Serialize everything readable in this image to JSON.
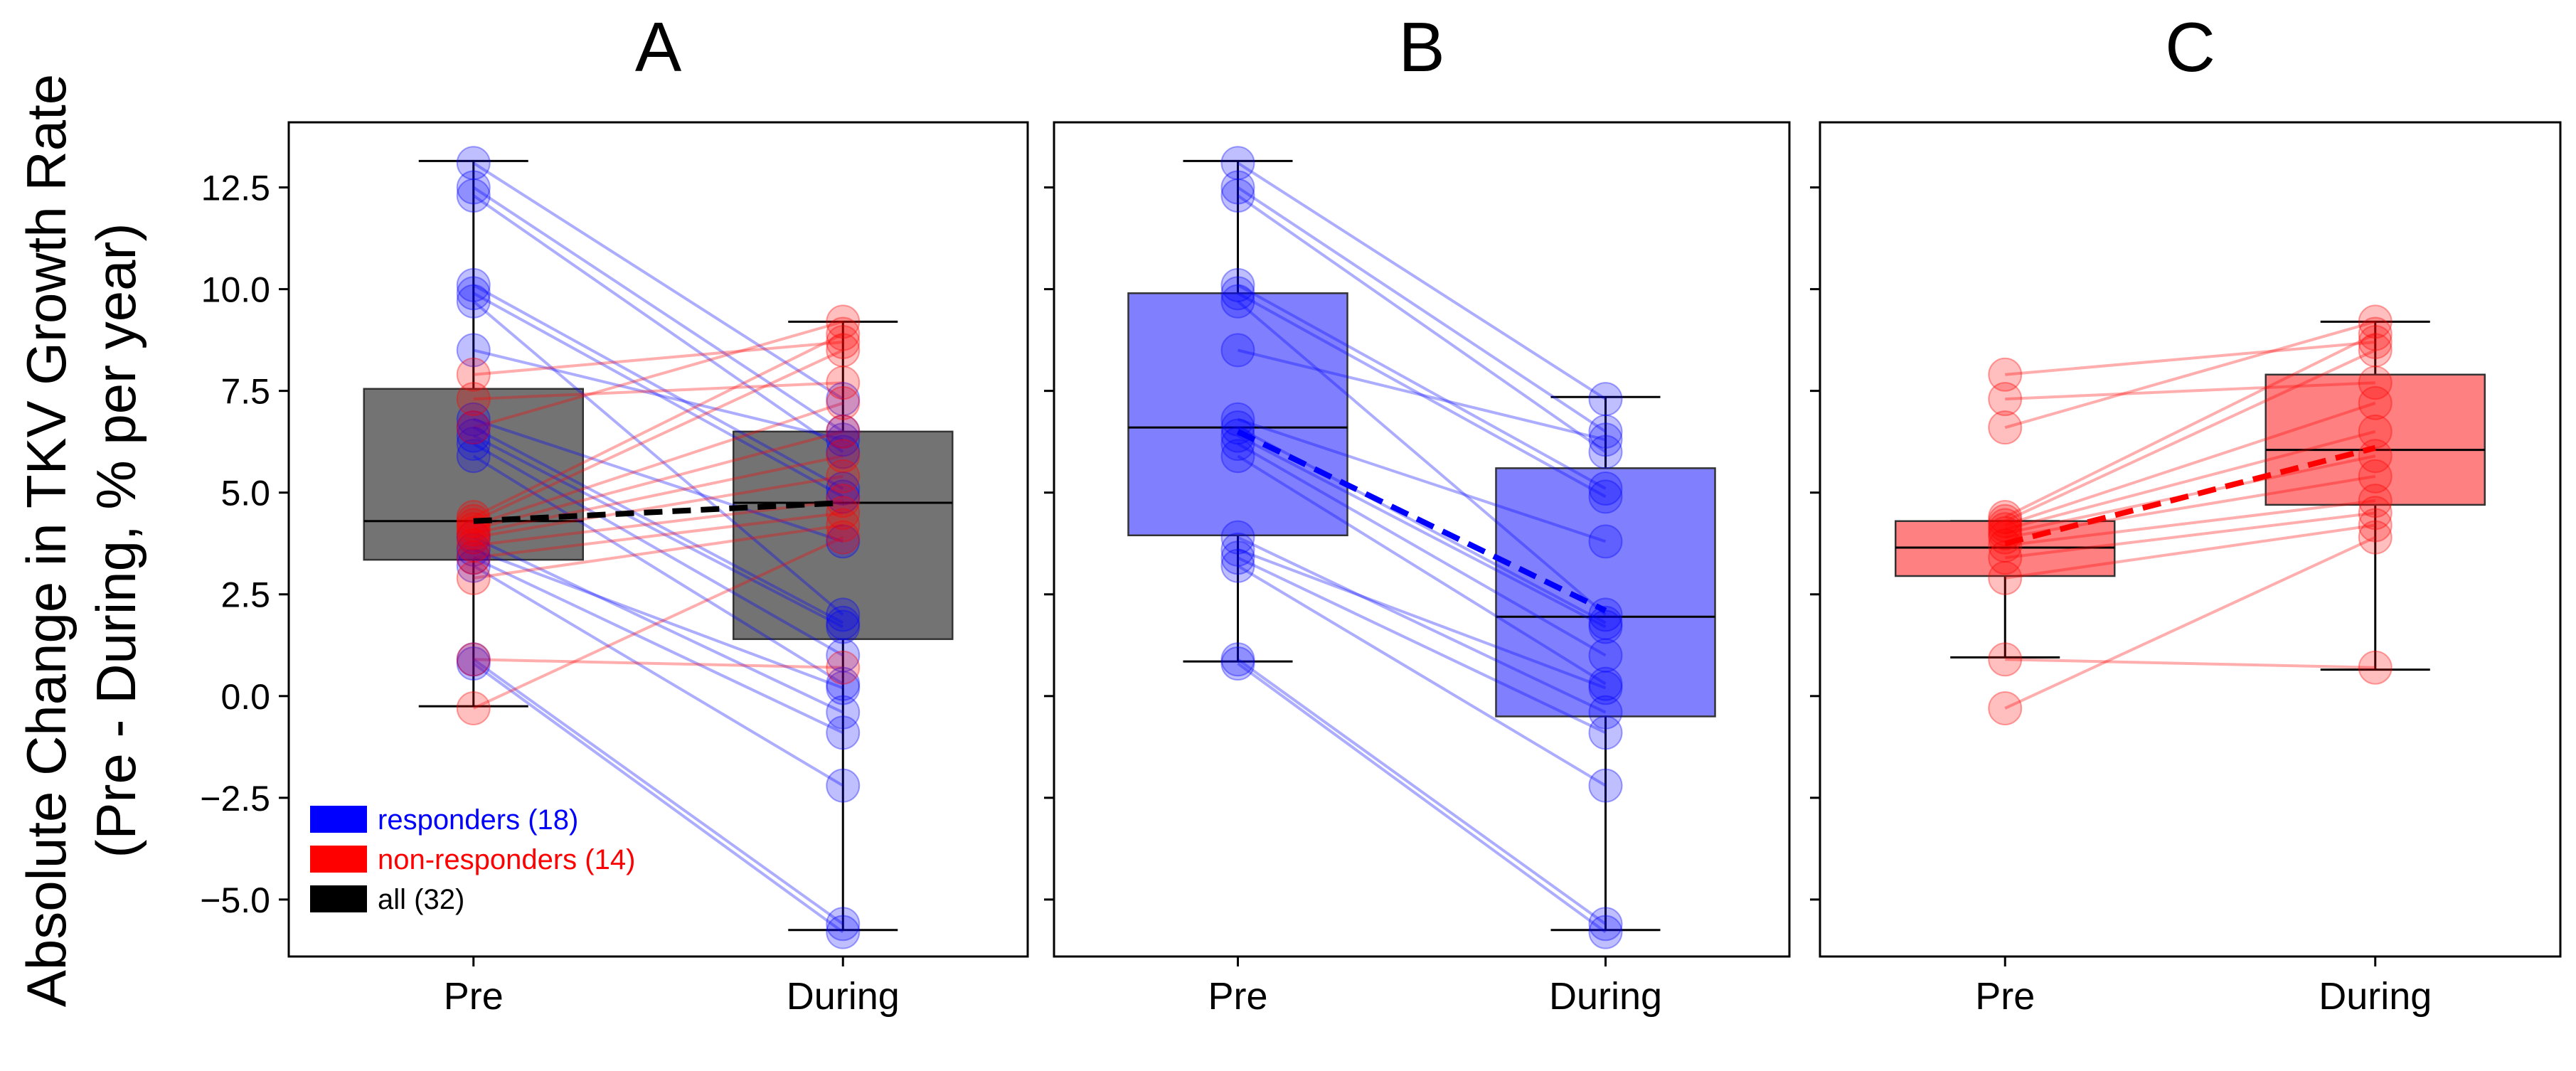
{
  "figure": {
    "ylabel_line1": "Absolute Change in TKV Growth Rate",
    "ylabel_line2": "(Pre - During, % per year)",
    "colors": {
      "responders": "#0000ff",
      "non_responders": "#ff0000",
      "all": "#000000",
      "box_all": "#737373",
      "box_responders": "#8080ff",
      "box_non_responders": "#ff8080"
    }
  },
  "legend": {
    "items": [
      {
        "label": "responders (18)",
        "color": "#0000ff"
      },
      {
        "label": "non-responders (14)",
        "color": "#ff0000"
      },
      {
        "label": "all (32)",
        "color": "#000000"
      }
    ]
  },
  "chart_data": [
    {
      "type": "box",
      "panel": "A",
      "title": "A",
      "categories": [
        "Pre",
        "During"
      ],
      "ylim": [
        -6.4,
        14.1
      ],
      "yticks": [
        -5.0,
        -2.5,
        0.0,
        2.5,
        5.0,
        7.5,
        10.0,
        12.5
      ],
      "ytick_labels": [
        "−5.0",
        "−2.5",
        "0.0",
        "2.5",
        "5.0",
        "7.5",
        "10.0",
        "12.5"
      ],
      "box_color": "#737373",
      "mean_line_color": "#000000",
      "means": [
        4.3,
        4.75
      ],
      "boxes": [
        {
          "q1": 3.35,
          "median": 4.3,
          "q3": 7.55,
          "whisker_low": -0.25,
          "whisker_high": 13.15
        },
        {
          "q1": 1.4,
          "median": 4.75,
          "q3": 6.5,
          "whisker_low": -5.75,
          "whisker_high": 9.2
        }
      ],
      "pairs": [
        {
          "group": "responders",
          "pre": 13.1,
          "during": 7.3
        },
        {
          "group": "responders",
          "pre": 12.5,
          "during": 6.5
        },
        {
          "group": "responders",
          "pre": 12.3,
          "during": 6.0
        },
        {
          "group": "responders",
          "pre": 10.1,
          "during": 5.1
        },
        {
          "group": "responders",
          "pre": 9.9,
          "during": 4.9
        },
        {
          "group": "responders",
          "pre": 9.7,
          "during": 2.0
        },
        {
          "group": "responders",
          "pre": 8.5,
          "during": 6.3
        },
        {
          "group": "responders",
          "pre": 6.8,
          "during": 3.8
        },
        {
          "group": "responders",
          "pre": 6.6,
          "during": 1.8
        },
        {
          "group": "responders",
          "pre": 6.4,
          "during": 1.7
        },
        {
          "group": "responders",
          "pre": 6.2,
          "during": 1.0
        },
        {
          "group": "responders",
          "pre": 5.9,
          "during": 0.3
        },
        {
          "group": "responders",
          "pre": 3.9,
          "during": -0.4
        },
        {
          "group": "responders",
          "pre": 3.6,
          "during": 0.2
        },
        {
          "group": "responders",
          "pre": 3.4,
          "during": -0.9
        },
        {
          "group": "responders",
          "pre": 3.2,
          "during": -2.2
        },
        {
          "group": "responders",
          "pre": 0.9,
          "during": -5.6
        },
        {
          "group": "responders",
          "pre": 0.8,
          "during": -5.8
        },
        {
          "group": "non_responders",
          "pre": 7.9,
          "during": 8.7
        },
        {
          "group": "non_responders",
          "pre": 7.3,
          "during": 7.7
        },
        {
          "group": "non_responders",
          "pre": 6.6,
          "during": 9.2
        },
        {
          "group": "non_responders",
          "pre": 4.4,
          "during": 8.9
        },
        {
          "group": "non_responders",
          "pre": 4.3,
          "during": 8.5
        },
        {
          "group": "non_responders",
          "pre": 4.2,
          "during": 7.2
        },
        {
          "group": "non_responders",
          "pre": 4.1,
          "during": 6.5
        },
        {
          "group": "non_responders",
          "pre": 4.0,
          "during": 5.9
        },
        {
          "group": "non_responders",
          "pre": 3.9,
          "during": 5.4
        },
        {
          "group": "non_responders",
          "pre": 3.7,
          "during": 4.8
        },
        {
          "group": "non_responders",
          "pre": 3.4,
          "during": 4.5
        },
        {
          "group": "non_responders",
          "pre": 2.9,
          "during": 4.2
        },
        {
          "group": "non_responders",
          "pre": 0.9,
          "during": 0.7
        },
        {
          "group": "non_responders",
          "pre": -0.3,
          "during": 3.9
        }
      ]
    },
    {
      "type": "box",
      "panel": "B",
      "title": "B",
      "categories": [
        "Pre",
        "During"
      ],
      "ylim": [
        -6.4,
        14.1
      ],
      "box_color": "#8080ff",
      "mean_line_color": "#0000ff",
      "means": [
        6.5,
        2.1
      ],
      "boxes": [
        {
          "q1": 3.95,
          "median": 6.6,
          "q3": 9.9,
          "whisker_low": 0.85,
          "whisker_high": 13.15
        },
        {
          "q1": -0.5,
          "median": 1.95,
          "q3": 5.6,
          "whisker_low": -5.75,
          "whisker_high": 7.35
        }
      ],
      "pairs": [
        {
          "group": "responders",
          "pre": 13.1,
          "during": 7.3
        },
        {
          "group": "responders",
          "pre": 12.5,
          "during": 6.5
        },
        {
          "group": "responders",
          "pre": 12.3,
          "during": 6.0
        },
        {
          "group": "responders",
          "pre": 10.1,
          "during": 5.1
        },
        {
          "group": "responders",
          "pre": 9.9,
          "during": 4.9
        },
        {
          "group": "responders",
          "pre": 9.7,
          "during": 2.0
        },
        {
          "group": "responders",
          "pre": 8.5,
          "during": 6.3
        },
        {
          "group": "responders",
          "pre": 6.8,
          "during": 3.8
        },
        {
          "group": "responders",
          "pre": 6.6,
          "during": 1.8
        },
        {
          "group": "responders",
          "pre": 6.4,
          "during": 1.7
        },
        {
          "group": "responders",
          "pre": 6.2,
          "during": 1.0
        },
        {
          "group": "responders",
          "pre": 5.9,
          "during": 0.3
        },
        {
          "group": "responders",
          "pre": 3.9,
          "during": -0.4
        },
        {
          "group": "responders",
          "pre": 3.6,
          "during": 0.2
        },
        {
          "group": "responders",
          "pre": 3.4,
          "during": -0.9
        },
        {
          "group": "responders",
          "pre": 3.2,
          "during": -2.2
        },
        {
          "group": "responders",
          "pre": 0.9,
          "during": -5.6
        },
        {
          "group": "responders",
          "pre": 0.8,
          "during": -5.8
        }
      ]
    },
    {
      "type": "box",
      "panel": "C",
      "title": "C",
      "categories": [
        "Pre",
        "During"
      ],
      "ylim": [
        -6.4,
        14.1
      ],
      "box_color": "#ff8080",
      "mean_line_color": "#ff0000",
      "means": [
        3.75,
        6.1
      ],
      "boxes": [
        {
          "q1": 2.95,
          "median": 3.65,
          "q3": 4.3,
          "whisker_low": 0.95,
          "whisker_high": 4.3
        },
        {
          "q1": 4.7,
          "median": 6.05,
          "q3": 7.9,
          "whisker_low": 0.65,
          "whisker_high": 9.2
        }
      ],
      "pairs": [
        {
          "group": "non_responders",
          "pre": 7.9,
          "during": 8.7
        },
        {
          "group": "non_responders",
          "pre": 7.3,
          "during": 7.7
        },
        {
          "group": "non_responders",
          "pre": 6.6,
          "during": 9.2
        },
        {
          "group": "non_responders",
          "pre": 4.4,
          "during": 8.9
        },
        {
          "group": "non_responders",
          "pre": 4.3,
          "during": 8.5
        },
        {
          "group": "non_responders",
          "pre": 4.2,
          "during": 7.2
        },
        {
          "group": "non_responders",
          "pre": 4.1,
          "during": 6.5
        },
        {
          "group": "non_responders",
          "pre": 4.0,
          "during": 5.9
        },
        {
          "group": "non_responders",
          "pre": 3.9,
          "during": 5.4
        },
        {
          "group": "non_responders",
          "pre": 3.7,
          "during": 4.8
        },
        {
          "group": "non_responders",
          "pre": 3.4,
          "during": 4.5
        },
        {
          "group": "non_responders",
          "pre": 2.9,
          "during": 4.2
        },
        {
          "group": "non_responders",
          "pre": 0.9,
          "during": 0.7
        },
        {
          "group": "non_responders",
          "pre": -0.3,
          "during": 3.9
        }
      ]
    }
  ]
}
